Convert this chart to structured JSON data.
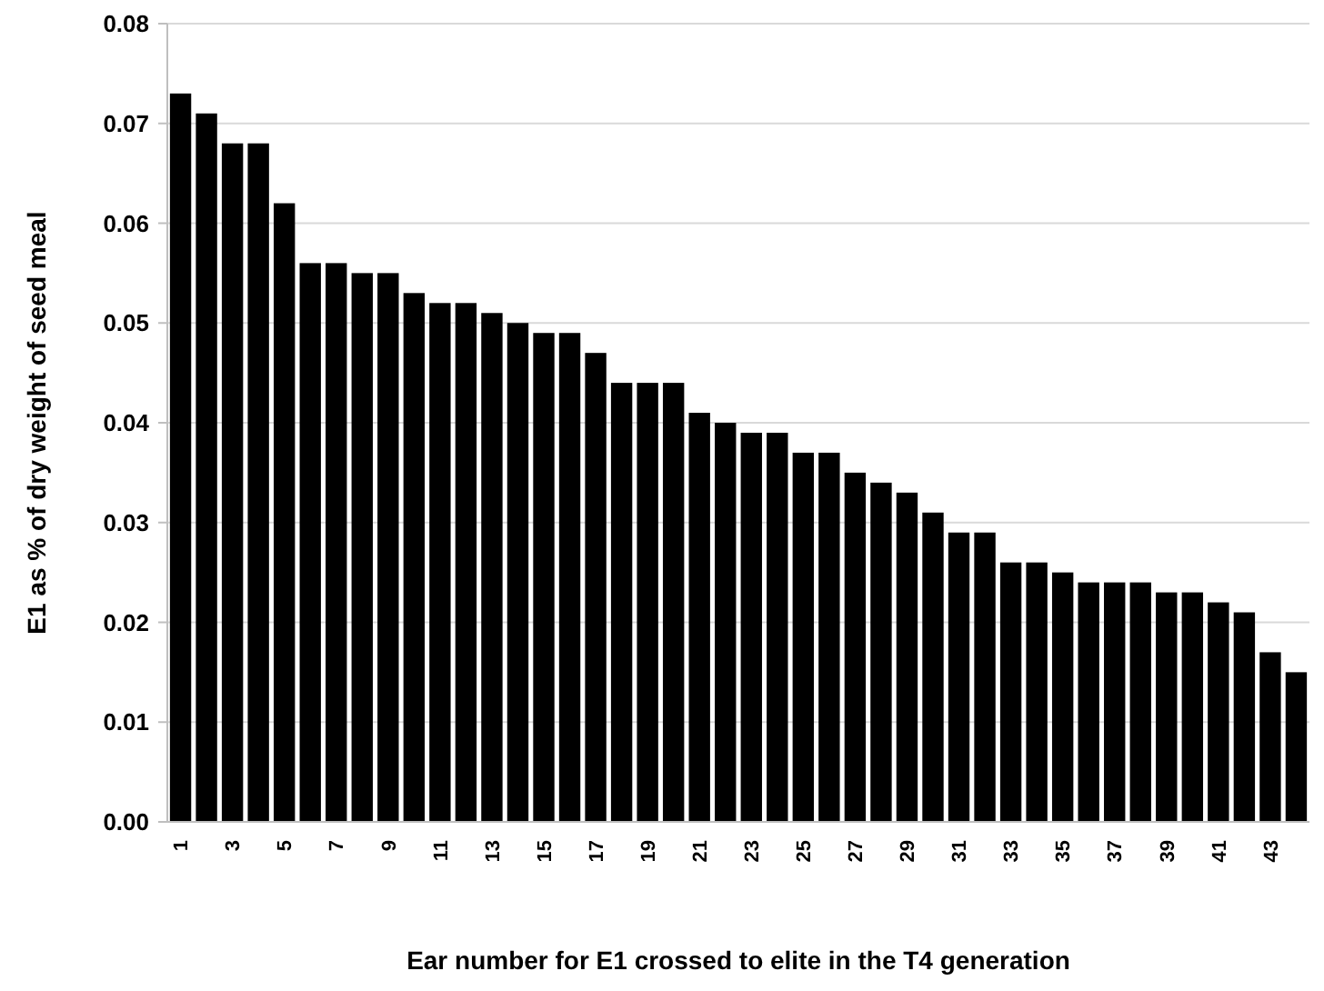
{
  "chart_data": {
    "type": "bar",
    "xlabel": "Ear number for E1 crossed to elite in the T4 generation",
    "ylabel": "E1 as % of dry weight of seed meal",
    "categories": [
      "1",
      null,
      "3",
      null,
      "5",
      null,
      "7",
      null,
      "9",
      null,
      "11",
      null,
      "13",
      null,
      "15",
      null,
      "17",
      null,
      "19",
      null,
      "21",
      null,
      "23",
      null,
      "25",
      null,
      "27",
      null,
      "29",
      null,
      "31",
      null,
      "33",
      null,
      "35",
      null,
      "37",
      null,
      "39",
      null,
      "41",
      null,
      "43",
      null
    ],
    "values": [
      0.073,
      0.071,
      0.068,
      0.068,
      0.062,
      0.056,
      0.056,
      0.055,
      0.055,
      0.053,
      0.052,
      0.052,
      0.051,
      0.05,
      0.049,
      0.049,
      0.047,
      0.044,
      0.044,
      0.044,
      0.041,
      0.04,
      0.039,
      0.039,
      0.037,
      0.037,
      0.035,
      0.034,
      0.033,
      0.031,
      0.029,
      0.029,
      0.026,
      0.026,
      0.025,
      0.024,
      0.024,
      0.024,
      0.023,
      0.023,
      0.022,
      0.021,
      0.017,
      0.015
    ],
    "color": "#000000",
    "ylim": [
      0,
      0.08
    ],
    "yticks": [
      {
        "value": 0,
        "label": "0.00"
      },
      {
        "value": 0.01,
        "label": "0.01"
      },
      {
        "value": 0.02,
        "label": "0.02"
      },
      {
        "value": 0.03,
        "label": "0.03"
      },
      {
        "value": 0.04,
        "label": "0.04"
      },
      {
        "value": 0.05,
        "label": "0.05"
      },
      {
        "value": 0.06,
        "label": "0.06"
      },
      {
        "value": 0.07,
        "label": "0.07"
      },
      {
        "value": 0.08,
        "label": "0.08"
      }
    ],
    "grid": "y"
  }
}
